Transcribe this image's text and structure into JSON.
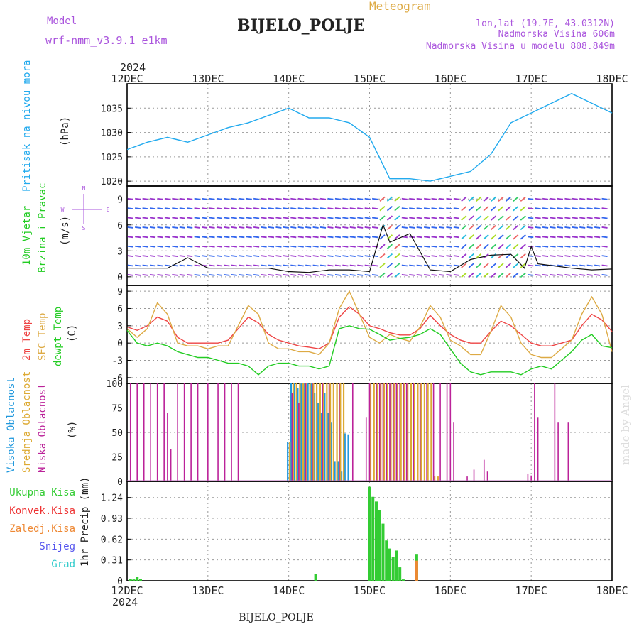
{
  "header": {
    "model_label": "Model",
    "model_name": "wrf-nmm_v3.9.1 e1km",
    "station": "BIJELO_POLJE",
    "product": "Meteogram",
    "lonlat": "lon,lat (19.7E, 43.0312N)",
    "elevation": "Nadmorska Visina 606m",
    "model_elevation": "Nadmorska Visina u modelu 808.849m",
    "year": "2024",
    "footer_station": "BIJELO_POLJE",
    "credit": "made by Angel"
  },
  "colors": {
    "pressure": "#22aaee",
    "t2m": "#ee4444",
    "sfc": "#ddaa44",
    "dew": "#22cc22",
    "high_cloud": "#2299dd",
    "mid_cloud": "#ddaa33",
    "low_cloud": "#bb2299",
    "total_precip": "#33cc33",
    "conv_precip": "#ee3333",
    "frozen_precip": "#ee8833",
    "snow": "#5555ee",
    "hail": "#33cccc",
    "model_label": "#aa55dd"
  },
  "chart_data": [
    {
      "type": "line",
      "title": "Pritisak na nivou mora",
      "ylabel": "(hPa)",
      "x_tick_labels": [
        "12DEC",
        "13DEC",
        "14DEC",
        "15DEC",
        "16DEC",
        "17DEC",
        "18DEC"
      ],
      "ylim": [
        1019,
        1040
      ],
      "yticks": [
        1020,
        1025,
        1030,
        1035
      ],
      "x_hours": [
        0,
        6,
        12,
        18,
        24,
        30,
        36,
        42,
        48,
        54,
        60,
        66,
        72,
        78,
        84,
        90,
        96,
        102,
        108,
        114,
        120,
        126,
        132,
        138,
        144
      ],
      "series": [
        {
          "name": "Pritisak na nivou mora",
          "values": [
            1026.5,
            1028,
            1029,
            1028,
            1029.5,
            1031,
            1032,
            1033.5,
            1035,
            1033,
            1033,
            1032,
            1029,
            1020.5,
            1020.5,
            1020,
            1021,
            1022,
            1025.5,
            1032,
            1034,
            1036,
            1038,
            1036,
            1034
          ]
        }
      ]
    },
    {
      "type": "line",
      "title": "10m Vjetar Brzina i Pravac",
      "ylabel": "(m/s)",
      "ylim": [
        -1,
        10.5
      ],
      "yticks": [
        0,
        3,
        6,
        9
      ],
      "compass": [
        "N",
        "E",
        "S",
        "W"
      ],
      "x_hours": [
        0,
        6,
        12,
        18,
        24,
        30,
        36,
        42,
        48,
        54,
        60,
        66,
        72,
        76,
        78,
        84,
        90,
        96,
        102,
        108,
        114,
        118,
        120,
        122,
        126,
        132,
        138,
        144
      ],
      "series": [
        {
          "name": "10m Vjetar Brzina",
          "values": [
            1,
            1,
            1,
            2.2,
            1,
            1,
            1,
            1,
            0.6,
            0.5,
            0.8,
            0.8,
            0.6,
            6,
            4,
            5,
            0.8,
            0.6,
            2,
            2.5,
            2.6,
            1,
            3.5,
            1.5,
            1.3,
            1,
            0.8,
            0.9
          ]
        }
      ]
    },
    {
      "type": "line",
      "title": "2m Temp / SFC Temp / dewpt Temp",
      "ylabel": "(C)",
      "ylim": [
        -7,
        10
      ],
      "yticks": [
        -6,
        -3,
        0,
        3,
        6,
        9
      ],
      "x_hours": [
        0,
        3,
        6,
        9,
        12,
        15,
        18,
        21,
        24,
        27,
        30,
        33,
        36,
        39,
        42,
        45,
        48,
        51,
        54,
        57,
        60,
        63,
        66,
        69,
        72,
        75,
        78,
        81,
        84,
        87,
        90,
        93,
        96,
        99,
        102,
        105,
        108,
        111,
        114,
        117,
        120,
        123,
        126,
        129,
        132,
        135,
        138,
        141,
        144
      ],
      "series": [
        {
          "name": "2m Temp",
          "values": [
            2.8,
            2.2,
            3,
            4.5,
            3.8,
            1,
            0,
            0,
            0,
            0,
            0.5,
            2.5,
            4.5,
            3.5,
            1.5,
            0.5,
            0,
            -0.5,
            -0.7,
            -1,
            0,
            4.5,
            6.3,
            5,
            3,
            2.5,
            1.8,
            1.4,
            1.4,
            2.5,
            4.8,
            3,
            1.5,
            0.5,
            0,
            0,
            2,
            3.8,
            3,
            1.5,
            0,
            -0.5,
            -0.5,
            0,
            0.5,
            3,
            5,
            4,
            2
          ]
        },
        {
          "name": "SFC Temp",
          "values": [
            2.5,
            1,
            2.5,
            7,
            5,
            0,
            -0.5,
            -0.5,
            -1,
            -0.5,
            -0.5,
            3,
            6.5,
            5,
            0,
            -1,
            -1,
            -1.5,
            -1.5,
            -2,
            0,
            6,
            9,
            5,
            1,
            0,
            1.5,
            0.8,
            0.3,
            2.8,
            6.5,
            4.5,
            0.5,
            -0.5,
            -2,
            -2,
            2,
            6.5,
            4.5,
            0,
            -2,
            -2.5,
            -2.5,
            -1,
            0.5,
            5,
            8,
            5,
            -1.5
          ]
        },
        {
          "name": "dewpt Temp",
          "values": [
            2.2,
            0,
            -0.5,
            0,
            -0.5,
            -1.5,
            -2,
            -2.5,
            -2.5,
            -3,
            -3.5,
            -3.5,
            -4,
            -5.5,
            -4,
            -3.5,
            -3.5,
            -4,
            -4,
            -4.5,
            -4,
            2.5,
            3,
            2.5,
            2.4,
            1.5,
            0.5,
            0.8,
            1,
            1.5,
            2.5,
            1.5,
            -1,
            -3.5,
            -5,
            -5.5,
            -5,
            -5,
            -5,
            -5.5,
            -4.5,
            -4,
            -4.5,
            -3,
            -1.5,
            0.5,
            1.5,
            -0.5,
            -0.8
          ]
        }
      ]
    },
    {
      "type": "bar",
      "title": "Visoka Oblacnost / Srednja Oblacnost / Niska Oblacnost",
      "ylabel": "(%)",
      "ylim": [
        0,
        100
      ],
      "yticks": [
        0,
        25,
        50,
        75,
        100
      ],
      "series": [
        {
          "name": "Visoka Oblacnost",
          "x_hours": [
            48,
            49,
            50,
            51,
            52,
            53,
            54,
            55,
            56,
            57,
            58,
            59,
            60,
            61,
            62,
            63,
            64,
            65,
            66
          ],
          "values": [
            40,
            100,
            100,
            95,
            100,
            100,
            100,
            100,
            90,
            80,
            70,
            90,
            70,
            60,
            20,
            20,
            10,
            49,
            48
          ]
        },
        {
          "name": "Srednja Oblacnost",
          "x_hours": [
            48,
            49,
            50,
            51,
            52,
            53,
            54,
            55,
            56,
            57,
            58,
            59,
            60,
            61,
            62,
            63,
            64,
            72,
            73,
            74,
            75,
            76,
            77,
            78,
            79,
            80,
            81,
            82,
            83,
            84,
            85,
            86,
            87,
            88,
            89,
            90,
            91,
            92
          ],
          "values": [
            40,
            100,
            100,
            100,
            100,
            100,
            100,
            100,
            100,
            100,
            100,
            100,
            100,
            100,
            100,
            100,
            100,
            100,
            100,
            100,
            100,
            100,
            100,
            100,
            100,
            100,
            100,
            100,
            100,
            100,
            100,
            100,
            100,
            100,
            100,
            100,
            5,
            5
          ]
        },
        {
          "name": "Niska Oblacnost",
          "x_hours": [
            1,
            3,
            5,
            7,
            9,
            11,
            12,
            13,
            15,
            17,
            19,
            21,
            24,
            27,
            29,
            31,
            33,
            49,
            51,
            53,
            55,
            58,
            60,
            63,
            67,
            71,
            72,
            74,
            75,
            76,
            77,
            78,
            79,
            80,
            81,
            82,
            83,
            85,
            87,
            89,
            91,
            93,
            95,
            96,
            97,
            101,
            103,
            106,
            107,
            119,
            120,
            121,
            122,
            127,
            128,
            131
          ],
          "values": [
            100,
            100,
            100,
            100,
            100,
            100,
            70,
            33,
            100,
            100,
            100,
            100,
            100,
            100,
            100,
            100,
            100,
            90,
            80,
            100,
            100,
            100,
            100,
            100,
            100,
            65,
            100,
            100,
            100,
            100,
            100,
            100,
            100,
            100,
            100,
            100,
            100,
            100,
            100,
            100,
            100,
            100,
            100,
            100,
            60,
            5,
            12,
            22,
            10,
            8,
            6,
            100,
            65,
            100,
            60,
            60
          ]
        }
      ]
    },
    {
      "type": "bar",
      "title": "1hr Precip",
      "ylabel": "1hr Precip (mm)",
      "ylim": [
        0,
        1.48
      ],
      "yticks": [
        0,
        0.31,
        0.62,
        0.93,
        1.24
      ],
      "legend": [
        "Ukupna Kisa",
        "Konvek.Kisa",
        "Zaledj.Kisa",
        "Snijeg",
        "Grad"
      ],
      "series": [
        {
          "name": "Ukupna Kisa",
          "x_hours": [
            1,
            2,
            3,
            4,
            56,
            72,
            73,
            74,
            75,
            76,
            77,
            78,
            79,
            80,
            81,
            82,
            86
          ],
          "values": [
            0.03,
            0.02,
            0.06,
            0.03,
            0.1,
            1.4,
            1.25,
            1.18,
            1.05,
            0.85,
            0.6,
            0.48,
            0.35,
            0.45,
            0.2,
            0.02,
            0.4
          ]
        },
        {
          "name": "Zaledj.Kisa",
          "x_hours": [
            86
          ],
          "values": [
            0.3
          ]
        }
      ]
    }
  ]
}
